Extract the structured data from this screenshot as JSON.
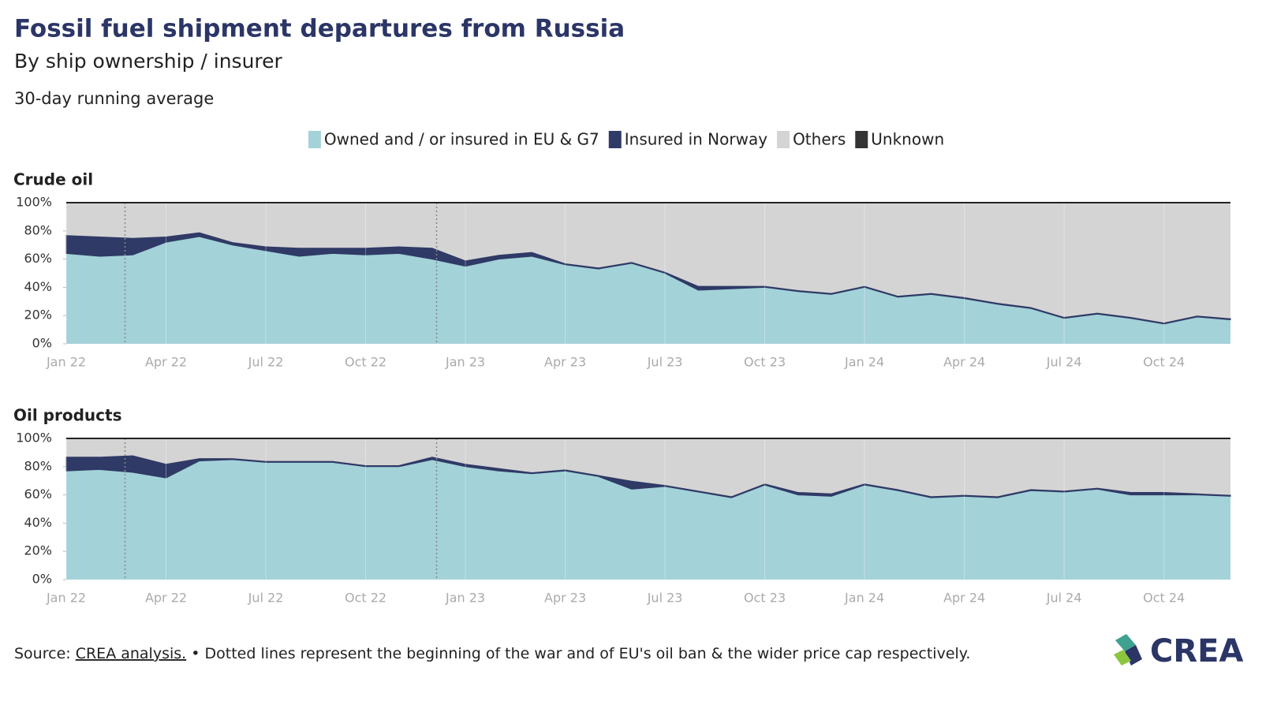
{
  "title": "Fossil fuel shipment departures from Russia",
  "subtitle": "By ship ownership / insurer",
  "note": "30-day running average",
  "source_prefix": "Source:",
  "source_link": "CREA analysis.",
  "source_note": "• Dotted lines represent the beginning of the war and of EU's oil ban & the wider price cap respectively.",
  "logo_text": "CREA",
  "chart_data": [
    {
      "type": "area",
      "title": "Crude oil",
      "x": [
        "2022-01",
        "2022-02",
        "2022-03",
        "2022-04",
        "2022-05",
        "2022-06",
        "2022-07",
        "2022-08",
        "2022-09",
        "2022-10",
        "2022-11",
        "2022-12",
        "2023-01",
        "2023-02",
        "2023-03",
        "2023-04",
        "2023-05",
        "2023-06",
        "2023-07",
        "2023-08",
        "2023-09",
        "2023-10",
        "2023-11",
        "2023-12",
        "2024-01",
        "2024-02",
        "2024-03",
        "2024-04",
        "2024-05",
        "2024-06",
        "2024-07",
        "2024-08",
        "2024-09",
        "2024-10",
        "2024-11",
        "2024-12"
      ],
      "series": [
        {
          "name": "Owned and / or insured in EU & G7",
          "color": "#a3d2d8",
          "values": [
            64,
            62,
            63,
            72,
            76,
            70,
            66,
            62,
            64,
            63,
            64,
            60,
            55,
            60,
            62,
            56,
            53,
            57,
            50,
            38,
            39,
            40,
            37,
            35,
            40,
            33,
            35,
            32,
            28,
            25,
            18,
            21,
            18,
            14,
            19,
            17
          ]
        },
        {
          "name": "Insured in Norway",
          "color": "#2f3a66",
          "values": [
            13,
            14,
            12,
            4,
            3,
            2,
            3,
            6,
            4,
            5,
            5,
            8,
            4,
            3,
            3,
            1,
            1,
            1,
            1,
            3,
            2,
            1,
            1,
            1,
            1,
            1,
            1,
            1,
            1,
            1,
            1,
            1,
            1,
            1,
            1,
            1
          ]
        },
        {
          "name": "Others",
          "color": "#d4d4d4",
          "values": [
            23,
            24,
            25,
            24,
            21,
            28,
            31,
            32,
            32,
            32,
            31,
            32,
            41,
            37,
            35,
            43,
            46,
            42,
            49,
            59,
            59,
            59,
            62,
            64,
            59,
            66,
            64,
            67,
            71,
            74,
            81,
            78,
            81,
            85,
            80,
            82
          ]
        },
        {
          "name": "Unknown",
          "color": "#333333",
          "values": [
            0,
            0,
            0,
            0,
            0,
            0,
            0,
            0,
            0,
            0,
            0,
            0,
            0,
            0,
            0,
            0,
            0,
            0,
            0,
            0,
            0,
            0,
            0,
            0,
            0,
            0,
            0,
            0,
            0,
            0,
            0,
            0,
            0,
            0,
            0,
            0
          ]
        }
      ],
      "xlim": [
        "2022-01",
        "2024-12"
      ],
      "xticks": [
        {
          "value": "2022-01",
          "label": "Jan 22"
        },
        {
          "value": "2022-04",
          "label": "Apr 22"
        },
        {
          "value": "2022-07",
          "label": "Jul 22"
        },
        {
          "value": "2022-10",
          "label": "Oct 22"
        },
        {
          "value": "2023-01",
          "label": "Jan 23"
        },
        {
          "value": "2023-04",
          "label": "Apr 23"
        },
        {
          "value": "2023-07",
          "label": "Jul 23"
        },
        {
          "value": "2023-10",
          "label": "Oct 23"
        },
        {
          "value": "2024-01",
          "label": "Jan 24"
        },
        {
          "value": "2024-04",
          "label": "Apr 24"
        },
        {
          "value": "2024-07",
          "label": "Jul 24"
        },
        {
          "value": "2024-10",
          "label": "Oct 24"
        }
      ],
      "ylim": [
        0,
        100
      ],
      "yticks": [
        {
          "value": 0,
          "label": "0%"
        },
        {
          "value": 20,
          "label": "20%"
        },
        {
          "value": 40,
          "label": "40%"
        },
        {
          "value": 60,
          "label": "60%"
        },
        {
          "value": 80,
          "label": "80%"
        },
        {
          "value": 100,
          "label": "100%"
        }
      ],
      "reference_lines": [
        "2022-02-24",
        "2022-12-05"
      ]
    },
    {
      "type": "area",
      "title": "Oil products",
      "x": [
        "2022-01",
        "2022-02",
        "2022-03",
        "2022-04",
        "2022-05",
        "2022-06",
        "2022-07",
        "2022-08",
        "2022-09",
        "2022-10",
        "2022-11",
        "2022-12",
        "2023-01",
        "2023-02",
        "2023-03",
        "2023-04",
        "2023-05",
        "2023-06",
        "2023-07",
        "2023-08",
        "2023-09",
        "2023-10",
        "2023-11",
        "2023-12",
        "2024-01",
        "2024-02",
        "2024-03",
        "2024-04",
        "2024-05",
        "2024-06",
        "2024-07",
        "2024-08",
        "2024-09",
        "2024-10",
        "2024-11",
        "2024-12"
      ],
      "series": [
        {
          "name": "Owned and / or insured in EU & G7",
          "color": "#a3d2d8",
          "values": [
            77,
            78,
            76,
            72,
            84,
            85,
            83,
            83,
            83,
            80,
            80,
            85,
            80,
            77,
            75,
            77,
            73,
            64,
            66,
            62,
            58,
            67,
            60,
            59,
            67,
            63,
            58,
            59,
            58,
            63,
            62,
            64,
            60,
            60,
            60,
            59
          ]
        },
        {
          "name": "Insured in Norway",
          "color": "#2f3a66",
          "values": [
            10,
            9,
            12,
            10,
            2,
            1,
            1,
            1,
            1,
            1,
            1,
            2,
            2,
            2,
            1,
            1,
            1,
            6,
            1,
            1,
            1,
            1,
            2,
            2,
            1,
            1,
            1,
            1,
            1,
            1,
            1,
            1,
            2,
            2,
            1,
            1
          ]
        },
        {
          "name": "Others",
          "color": "#d4d4d4",
          "values": [
            13,
            13,
            12,
            18,
            14,
            14,
            16,
            16,
            16,
            19,
            19,
            13,
            18,
            21,
            24,
            22,
            26,
            30,
            33,
            37,
            41,
            32,
            38,
            39,
            32,
            36,
            41,
            40,
            41,
            36,
            37,
            35,
            38,
            38,
            39,
            40
          ]
        },
        {
          "name": "Unknown",
          "color": "#333333",
          "values": [
            0,
            0,
            0,
            0,
            0,
            0,
            0,
            0,
            0,
            0,
            0,
            0,
            0,
            0,
            0,
            0,
            0,
            0,
            0,
            0,
            0,
            0,
            0,
            0,
            0,
            0,
            0,
            0,
            0,
            0,
            0,
            0,
            0,
            0,
            0,
            0
          ]
        }
      ],
      "xlim": [
        "2022-01",
        "2024-12"
      ],
      "xticks": [
        {
          "value": "2022-01",
          "label": "Jan 22"
        },
        {
          "value": "2022-04",
          "label": "Apr 22"
        },
        {
          "value": "2022-07",
          "label": "Jul 22"
        },
        {
          "value": "2022-10",
          "label": "Oct 22"
        },
        {
          "value": "2023-01",
          "label": "Jan 23"
        },
        {
          "value": "2023-04",
          "label": "Apr 23"
        },
        {
          "value": "2023-07",
          "label": "Jul 23"
        },
        {
          "value": "2023-10",
          "label": "Oct 23"
        },
        {
          "value": "2024-01",
          "label": "Jan 24"
        },
        {
          "value": "2024-04",
          "label": "Apr 24"
        },
        {
          "value": "2024-07",
          "label": "Jul 24"
        },
        {
          "value": "2024-10",
          "label": "Oct 24"
        }
      ],
      "ylim": [
        0,
        100
      ],
      "yticks": [
        {
          "value": 0,
          "label": "0%"
        },
        {
          "value": 20,
          "label": "20%"
        },
        {
          "value": 40,
          "label": "40%"
        },
        {
          "value": 60,
          "label": "60%"
        },
        {
          "value": 80,
          "label": "80%"
        },
        {
          "value": 100,
          "label": "100%"
        }
      ],
      "reference_lines": [
        "2022-02-24",
        "2022-12-05"
      ]
    }
  ]
}
